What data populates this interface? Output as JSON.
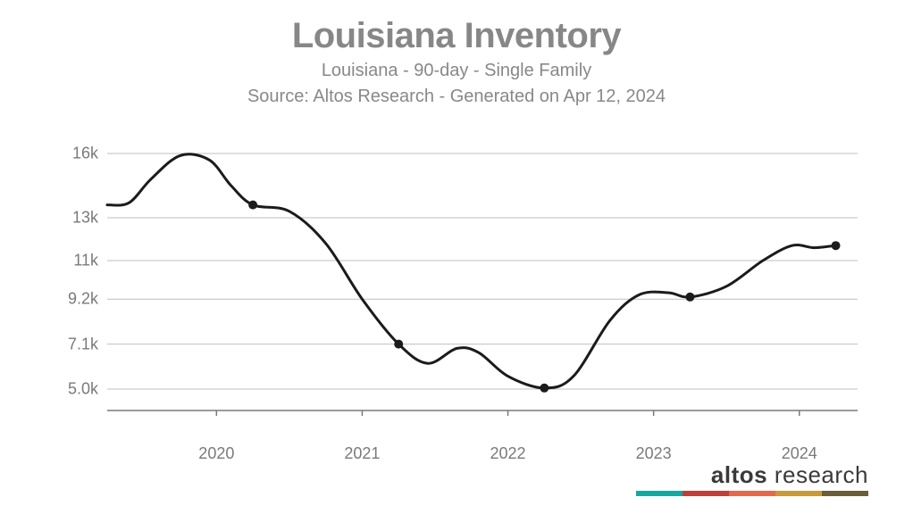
{
  "header": {
    "title": "Louisiana Inventory",
    "subtitle": "Louisiana - 90-day - Single Family",
    "source": "Source: Altos Research - Generated on Apr 12, 2024"
  },
  "chart": {
    "type": "line",
    "background_color": "#ffffff",
    "grid_color": "#bfbfbf",
    "axis_color": "#7a7a7a",
    "tick_label_color": "#7a7a7a",
    "tick_label_fontsize": 18,
    "line_color": "#1b1b1b",
    "line_width": 3,
    "marker_color": "#1b1b1b",
    "marker_radius": 5,
    "x_domain": [
      2019.25,
      2024.4
    ],
    "y_domain": [
      4.0,
      16.5
    ],
    "y_ticks": [
      {
        "value": 5.0,
        "label": "5.0k"
      },
      {
        "value": 7.1,
        "label": "7.1k"
      },
      {
        "value": 9.2,
        "label": "9.2k"
      },
      {
        "value": 11.0,
        "label": "11k"
      },
      {
        "value": 13.0,
        "label": "13k"
      },
      {
        "value": 16.0,
        "label": "16k"
      }
    ],
    "x_ticks": [
      {
        "value": 2020,
        "label": "2020"
      },
      {
        "value": 2021,
        "label": "2021"
      },
      {
        "value": 2022,
        "label": "2022"
      },
      {
        "value": 2023,
        "label": "2023"
      },
      {
        "value": 2024,
        "label": "2024"
      }
    ],
    "series": [
      {
        "x": 2019.25,
        "y": 13.6
      },
      {
        "x": 2019.4,
        "y": 13.7
      },
      {
        "x": 2019.55,
        "y": 14.8
      },
      {
        "x": 2019.75,
        "y": 15.9
      },
      {
        "x": 2019.95,
        "y": 15.7
      },
      {
        "x": 2020.1,
        "y": 14.5
      },
      {
        "x": 2020.25,
        "y": 13.6
      },
      {
        "x": 2020.5,
        "y": 13.3
      },
      {
        "x": 2020.75,
        "y": 11.8
      },
      {
        "x": 2021.0,
        "y": 9.2
      },
      {
        "x": 2021.25,
        "y": 7.1
      },
      {
        "x": 2021.45,
        "y": 6.2
      },
      {
        "x": 2021.65,
        "y": 6.9
      },
      {
        "x": 2021.8,
        "y": 6.7
      },
      {
        "x": 2022.0,
        "y": 5.6
      },
      {
        "x": 2022.25,
        "y": 5.05
      },
      {
        "x": 2022.45,
        "y": 5.6
      },
      {
        "x": 2022.7,
        "y": 8.2
      },
      {
        "x": 2022.9,
        "y": 9.4
      },
      {
        "x": 2023.1,
        "y": 9.5
      },
      {
        "x": 2023.25,
        "y": 9.3
      },
      {
        "x": 2023.5,
        "y": 9.8
      },
      {
        "x": 2023.75,
        "y": 11.0
      },
      {
        "x": 2023.95,
        "y": 11.7
      },
      {
        "x": 2024.1,
        "y": 11.6
      },
      {
        "x": 2024.25,
        "y": 11.7
      }
    ],
    "markers": [
      {
        "x": 2020.25,
        "y": 13.6
      },
      {
        "x": 2021.25,
        "y": 7.1
      },
      {
        "x": 2022.25,
        "y": 5.05
      },
      {
        "x": 2023.25,
        "y": 9.3
      },
      {
        "x": 2024.25,
        "y": 11.7
      }
    ]
  },
  "logo": {
    "text_bold": "altos",
    "text_light": " research",
    "bar_colors": [
      "#1aa6a0",
      "#bd3f3a",
      "#e0694e",
      "#c79a3d",
      "#6b5e3a"
    ]
  }
}
